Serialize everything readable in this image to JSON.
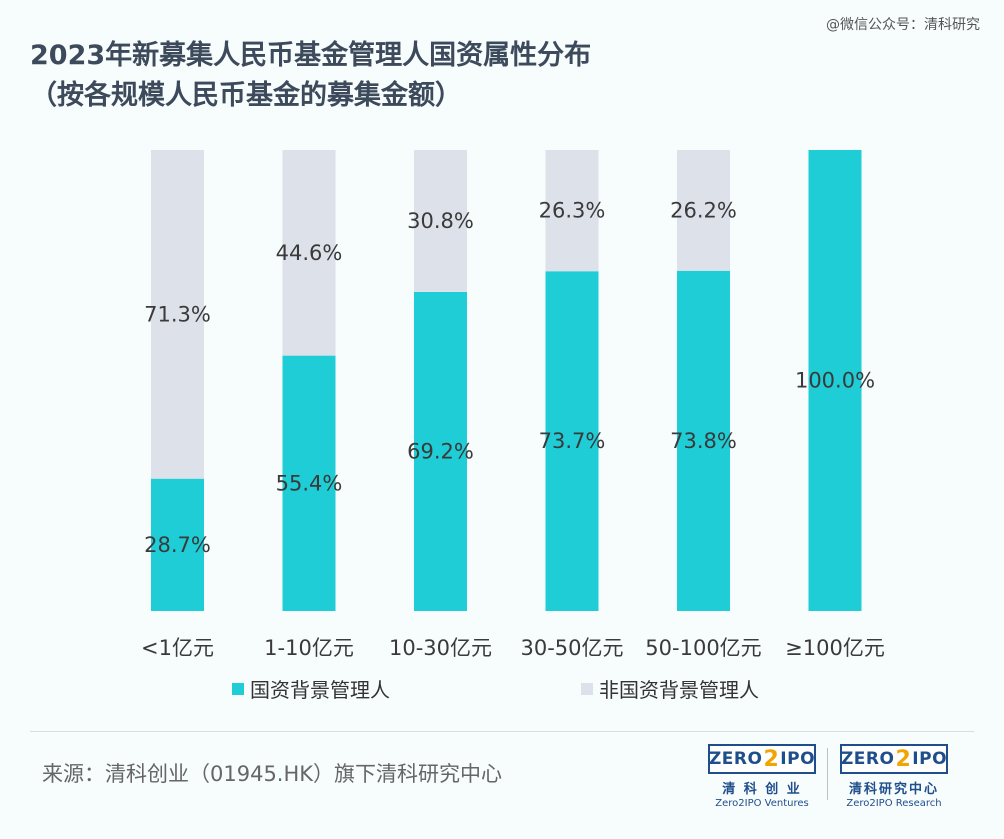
{
  "watermark": "@微信公众号：清科研究",
  "title_line1": "2023年新募集人民币基金管理人国资属性分布",
  "title_line2": "（按各规模人民币基金的募集金额）",
  "chart_data": {
    "type": "bar",
    "stacked": true,
    "percent_stacked": true,
    "categories": [
      "<1亿元",
      "1-10亿元",
      "10-30亿元",
      "30-50亿元",
      "50-100亿元",
      "≥100亿元"
    ],
    "series": [
      {
        "name": "国资背景管理人",
        "color": "#1ecdd6",
        "values": [
          28.7,
          55.4,
          69.2,
          73.7,
          73.8,
          100.0
        ],
        "labels": [
          "28.7%",
          "55.4%",
          "69.2%",
          "73.7%",
          "73.8%",
          "100.0%"
        ]
      },
      {
        "name": "非国资背景管理人",
        "color": "#dde1ea",
        "values": [
          71.3,
          44.6,
          30.8,
          26.3,
          26.2,
          0
        ],
        "labels": [
          "71.3%",
          "44.6%",
          "30.8%",
          "26.3%",
          "26.2%",
          ""
        ]
      }
    ],
    "ylim": [
      0,
      100
    ],
    "grid": false,
    "legend_position": "bottom"
  },
  "legend": {
    "state_label": "国资背景管理人",
    "state_color": "#1ecdd6",
    "nonstate_label": "非国资背景管理人",
    "nonstate_color": "#dde1ea"
  },
  "source": "来源：清科创业（01945.HK）旗下清科研究中心",
  "logo_left": {
    "zero": "ZERO",
    "two": "2",
    "ipo": "IPO",
    "cn": "清 科 创 业",
    "en": "Zero2IPO Ventures"
  },
  "logo_right": {
    "zero": "ZERO",
    "two": "2",
    "ipo": "IPO",
    "cn": "清科研究中心",
    "en": "Zero2IPO Research"
  }
}
